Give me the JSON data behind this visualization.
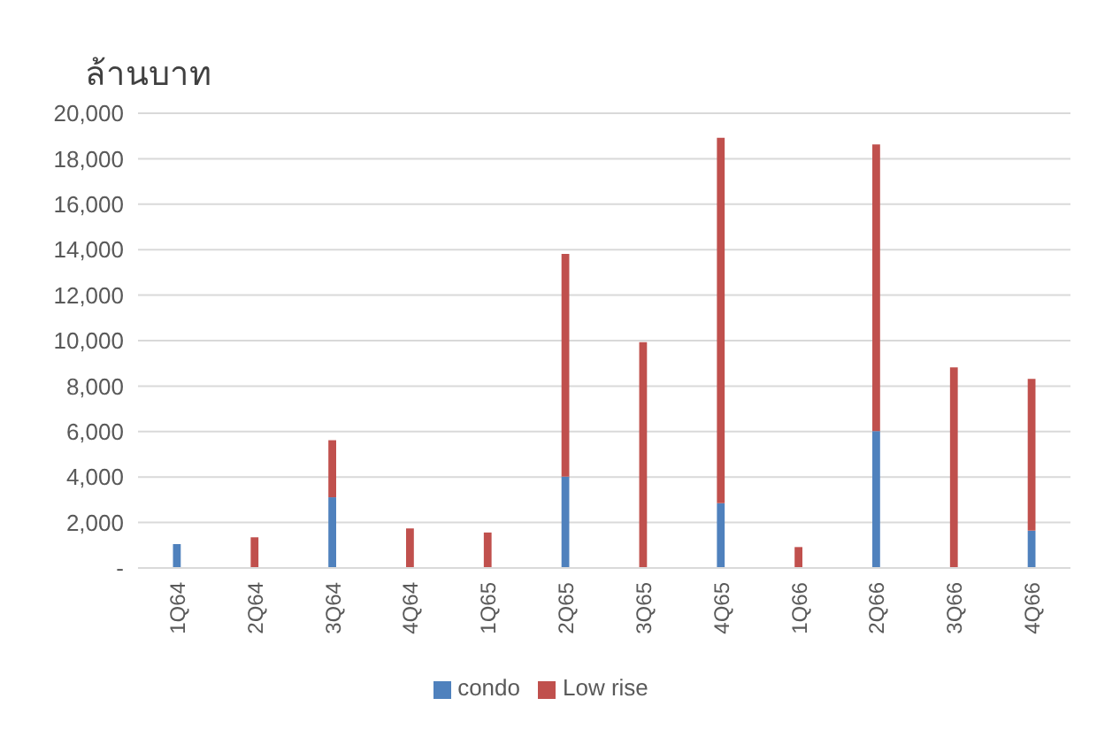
{
  "chart_data": {
    "type": "bar",
    "ylabel": "ล้านบาท",
    "stacked": true,
    "categories": [
      "1Q64",
      "2Q64",
      "3Q64",
      "4Q64",
      "1Q65",
      "2Q65",
      "3Q65",
      "4Q65",
      "1Q66",
      "2Q66",
      "3Q66",
      "4Q66"
    ],
    "series": [
      {
        "name": "condo",
        "color": "#4f81bd",
        "values": [
          1050,
          0,
          3110,
          0,
          0,
          4020,
          0,
          2850,
          0,
          6020,
          0,
          1640
        ]
      },
      {
        "name": "Low rise",
        "color": "#c0504d",
        "values": [
          0,
          1350,
          2510,
          1740,
          1560,
          9790,
          9930,
          16070,
          920,
          12610,
          8820,
          6680
        ]
      }
    ],
    "ylim": [
      0,
      20000
    ],
    "yticks": [
      {
        "value": 0,
        "label": "-"
      },
      {
        "value": 2000,
        "label": "2,000"
      },
      {
        "value": 4000,
        "label": "4,000"
      },
      {
        "value": 6000,
        "label": "6,000"
      },
      {
        "value": 8000,
        "label": "8,000"
      },
      {
        "value": 10000,
        "label": "10,000"
      },
      {
        "value": 12000,
        "label": "12,000"
      },
      {
        "value": 14000,
        "label": "14,000"
      },
      {
        "value": 16000,
        "label": "16,000"
      },
      {
        "value": 18000,
        "label": "18,000"
      },
      {
        "value": 20000,
        "label": "20,000"
      }
    ],
    "grid": "y",
    "legend": "bottom"
  }
}
